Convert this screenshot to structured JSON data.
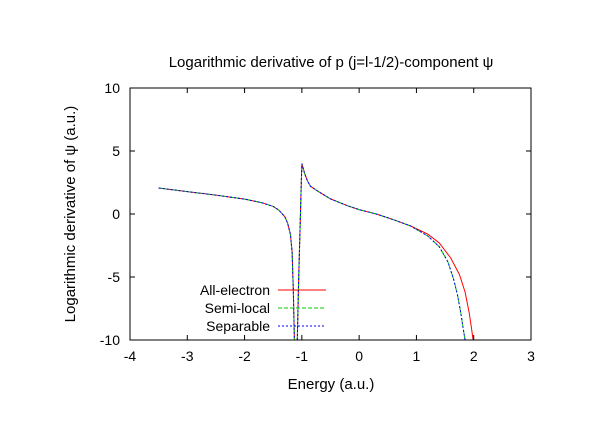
{
  "chart_data": {
    "type": "line",
    "title": "Logarithmic derivative of p (j=l-1/2)-component ψ",
    "xlabel": "Energy (a.u.)",
    "ylabel": "Logarithmic derivative of ψ (a.u.)",
    "xlim": [
      -4,
      3
    ],
    "ylim": [
      -10,
      10
    ],
    "xticks": [
      "-4",
      "-3",
      "-2",
      "-1",
      "0",
      "1",
      "2",
      "3"
    ],
    "yticks": [
      "10",
      "5",
      "0",
      "-5",
      "-10"
    ],
    "grid": false,
    "legend": "bottom-left",
    "series": [
      {
        "name": "All-electron",
        "color": "#ff0000",
        "dash": "solid",
        "segments": [
          [
            [
              -3.5,
              2.06
            ],
            [
              -3.0,
              1.78
            ],
            [
              -2.5,
              1.5
            ],
            [
              -2.0,
              1.18
            ],
            [
              -1.7,
              0.9
            ],
            [
              -1.5,
              0.6
            ],
            [
              -1.4,
              0.3
            ],
            [
              -1.3,
              -0.2
            ],
            [
              -1.25,
              -0.7
            ],
            [
              -1.2,
              -1.6
            ],
            [
              -1.17,
              -3.0
            ],
            [
              -1.15,
              -6.0
            ],
            [
              -1.13,
              -10.0
            ]
          ],
          [
            [
              -1.08,
              -10.0
            ],
            [
              -1.06,
              -6.0
            ],
            [
              -1.03,
              -1.0
            ],
            [
              -1.01,
              2.5
            ],
            [
              -1.0,
              4.0
            ],
            [
              -0.95,
              3.2
            ],
            [
              -0.9,
              2.6
            ],
            [
              -0.85,
              2.2
            ],
            [
              -0.7,
              1.75
            ],
            [
              -0.5,
              1.2
            ],
            [
              -0.2,
              0.65
            ],
            [
              0.0,
              0.35
            ],
            [
              0.3,
              0.0
            ],
            [
              0.6,
              -0.45
            ],
            [
              0.9,
              -0.95
            ],
            [
              1.2,
              -1.6
            ],
            [
              1.4,
              -2.3
            ],
            [
              1.6,
              -3.5
            ],
            [
              1.75,
              -4.8
            ],
            [
              1.85,
              -6.2
            ],
            [
              1.92,
              -7.8
            ],
            [
              1.96,
              -9.0
            ],
            [
              1.99,
              -10.0
            ]
          ]
        ]
      },
      {
        "name": "Semi-local",
        "color": "#00cc00",
        "dash": "dashed",
        "segments": [
          [
            [
              -3.5,
              2.06
            ],
            [
              -3.0,
              1.78
            ],
            [
              -2.5,
              1.5
            ],
            [
              -2.0,
              1.18
            ],
            [
              -1.7,
              0.9
            ],
            [
              -1.5,
              0.6
            ],
            [
              -1.4,
              0.3
            ],
            [
              -1.3,
              -0.2
            ],
            [
              -1.25,
              -0.7
            ],
            [
              -1.2,
              -1.6
            ],
            [
              -1.17,
              -3.0
            ],
            [
              -1.15,
              -6.0
            ],
            [
              -1.13,
              -10.0
            ]
          ],
          [
            [
              -1.08,
              -10.0
            ],
            [
              -1.06,
              -6.0
            ],
            [
              -1.03,
              -1.0
            ],
            [
              -1.01,
              2.5
            ],
            [
              -1.0,
              4.0
            ],
            [
              -0.95,
              3.2
            ],
            [
              -0.9,
              2.6
            ],
            [
              -0.85,
              2.2
            ],
            [
              -0.7,
              1.75
            ],
            [
              -0.5,
              1.2
            ],
            [
              -0.2,
              0.65
            ],
            [
              0.0,
              0.35
            ],
            [
              0.3,
              0.0
            ],
            [
              0.6,
              -0.45
            ],
            [
              0.9,
              -0.95
            ],
            [
              1.2,
              -1.75
            ],
            [
              1.4,
              -2.6
            ],
            [
              1.55,
              -3.8
            ],
            [
              1.65,
              -5.2
            ],
            [
              1.72,
              -6.5
            ],
            [
              1.78,
              -8.0
            ],
            [
              1.82,
              -9.2
            ],
            [
              1.85,
              -10.0
            ]
          ]
        ]
      },
      {
        "name": "Separable",
        "color": "#0000ff",
        "dash": "dotted",
        "segments": [
          [
            [
              -3.5,
              2.06
            ],
            [
              -3.0,
              1.78
            ],
            [
              -2.5,
              1.5
            ],
            [
              -2.0,
              1.18
            ],
            [
              -1.7,
              0.9
            ],
            [
              -1.5,
              0.6
            ],
            [
              -1.4,
              0.3
            ],
            [
              -1.3,
              -0.2
            ],
            [
              -1.25,
              -0.7
            ],
            [
              -1.2,
              -1.6
            ],
            [
              -1.17,
              -3.0
            ],
            [
              -1.15,
              -6.0
            ],
            [
              -1.13,
              -10.0
            ]
          ],
          [
            [
              -1.08,
              -10.0
            ],
            [
              -1.06,
              -6.0
            ],
            [
              -1.03,
              -1.0
            ],
            [
              -1.01,
              2.5
            ],
            [
              -1.0,
              4.0
            ],
            [
              -0.95,
              3.2
            ],
            [
              -0.9,
              2.6
            ],
            [
              -0.85,
              2.2
            ],
            [
              -0.7,
              1.75
            ],
            [
              -0.5,
              1.2
            ],
            [
              -0.2,
              0.65
            ],
            [
              0.0,
              0.35
            ],
            [
              0.3,
              0.0
            ],
            [
              0.6,
              -0.45
            ],
            [
              0.9,
              -0.95
            ],
            [
              1.2,
              -1.75
            ],
            [
              1.4,
              -2.6
            ],
            [
              1.55,
              -3.8
            ],
            [
              1.65,
              -5.2
            ],
            [
              1.72,
              -6.5
            ],
            [
              1.78,
              -8.0
            ],
            [
              1.82,
              -9.2
            ],
            [
              1.85,
              -10.0
            ]
          ]
        ]
      }
    ]
  }
}
